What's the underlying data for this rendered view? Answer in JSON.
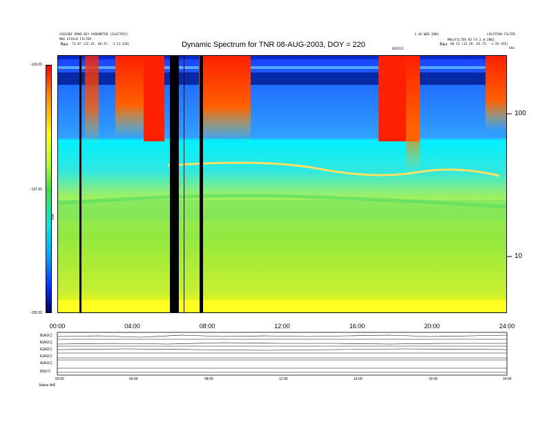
{
  "header": {
    "left_line1": "CASSINI RPWS KEY PARAMETER (ELECTRIC)",
    "left_line2": "MAG EFIELD FILTER",
    "left_rev_label": "Rev",
    "left_rev_value": "73.87 (22.33, 66.47, -3.51 GSE)",
    "right_line1": "1.10 WED 2003",
    "right_line2": "LOCATION FILTER",
    "right_line3": "MAG/FILTER R3 F3 2.0-2002",
    "right_rev_label": "Rev",
    "right_rev_value": "68.13 (15.59, 65.75, -1.59 GSE)",
    "title": "Dynamic Spectrum for TNR 08-AUG-2003, DOY = 220",
    "center_small": "DEVICE",
    "unit_right": "kHz"
  },
  "colorbar": {
    "label": "TNR",
    "ticks": [
      "-120.00",
      "-137.50",
      "-155.00"
    ],
    "stops": [
      "#ff0000",
      "#ff8800",
      "#ffff00",
      "#40e040",
      "#00e8e8",
      "#0030ff",
      "#000060"
    ]
  },
  "chart_data": {
    "type": "heatmap",
    "title": "Dynamic Spectrum for TNR 08-AUG-2003, DOY = 220",
    "x_ticks": [
      "00:00",
      "04:00",
      "08:00",
      "12:00",
      "16:00",
      "20:00",
      "24:00"
    ],
    "xlim_hours": [
      0,
      24
    ],
    "y_ticks": [
      100,
      10
    ],
    "y_scale": "log",
    "yunit": "kHz",
    "zlim": [
      -155.0,
      -120.0
    ],
    "data_gaps_hours": [
      [
        1.15,
        1.25
      ],
      [
        5.95,
        6.45
      ],
      [
        7.55,
        7.75
      ]
    ],
    "emission_lines_kHz": [
      {
        "kHz": 48,
        "note": "upper band"
      },
      {
        "kHz": 40,
        "note": "band"
      },
      {
        "kHz": 25,
        "note": "lower band"
      }
    ]
  },
  "bottom_panels": {
    "labels": [
      "B(AGC)",
      "B(AGC)",
      "E(AGC)",
      "E(AGC)",
      "A(AGC)",
      "|B|(nT)"
    ],
    "x_ticks": [
      "00:00",
      "04:00",
      "08:00",
      "12:00",
      "16:00",
      "20:00",
      "24:00"
    ],
    "footer": "Status  dh$"
  }
}
